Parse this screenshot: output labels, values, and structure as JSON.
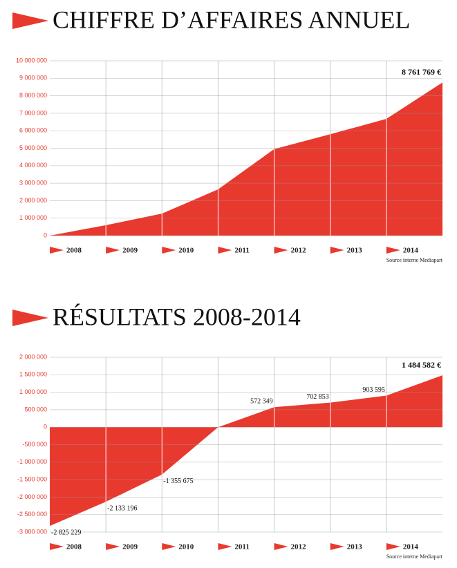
{
  "chart_data": [
    {
      "type": "area",
      "title": "CHIFFRE D’AFFAIRES ANNUEL",
      "color": "#e8392f",
      "categories": [
        "2008",
        "2009",
        "2010",
        "2011",
        "2012",
        "2013",
        "2014",
        null
      ],
      "values": [
        0,
        600000,
        1260000,
        2650000,
        4950000,
        5800000,
        6680000,
        8761769
      ],
      "value_labels": [
        null,
        null,
        null,
        null,
        null,
        null,
        null,
        "8 761 769 €"
      ],
      "ylim": [
        0,
        10000000
      ],
      "yticks": [
        0,
        {
          "value": 1000000,
          "label": "1 000 000"
        },
        {
          "value": 2000000,
          "label": "2 000 000"
        },
        {
          "value": 3000000,
          "label": "3 000 000"
        },
        {
          "value": 4000000,
          "label": "4 000 000"
        },
        {
          "value": 5000000,
          "label": "5 000 000"
        },
        {
          "value": 6000000,
          "label": "6 000 000"
        },
        {
          "value": 7000000,
          "label": "7 000 000"
        },
        {
          "value": 8000000,
          "label": "8 000 000"
        },
        {
          "value": 9000000,
          "label": "9 000 000"
        },
        {
          "value": 10000000,
          "label": "10 000 000"
        }
      ],
      "grid": true,
      "source": "Source interne Mediapart"
    },
    {
      "type": "area",
      "title": "RÉSULTATS 2008-2014",
      "color": "#e8392f",
      "categories": [
        "2008",
        "2009",
        "2010",
        "2011",
        "2012",
        "2013",
        "2014",
        null
      ],
      "values": [
        -2825229,
        -2133196,
        -1355675,
        0,
        572349,
        702853,
        903595,
        1484582
      ],
      "value_labels": [
        "-2 825 229",
        "-2 133 196",
        "-1 355 675",
        null,
        "572 349",
        "702 853",
        "903 595",
        "1 484 582 €"
      ],
      "ylim": [
        -3000000,
        2000000
      ],
      "yticks": [
        {
          "value": -3000000,
          "label": "-3 000 000"
        },
        {
          "value": -2500000,
          "label": "-2 500 000"
        },
        {
          "value": -2000000,
          "label": "-2 000 000"
        },
        {
          "value": -1500000,
          "label": "-1 500 000"
        },
        {
          "value": -1000000,
          "label": "-1 000 000"
        },
        {
          "value": -500000,
          "label": "-500 000"
        },
        0,
        {
          "value": 500000,
          "label": "500 000"
        },
        {
          "value": 1000000,
          "label": "1 000 000"
        },
        {
          "value": 1500000,
          "label": "1 500 000"
        },
        {
          "value": 2000000,
          "label": "2 000 000"
        }
      ],
      "grid": true,
      "source": "Source interne Mediapart"
    }
  ]
}
